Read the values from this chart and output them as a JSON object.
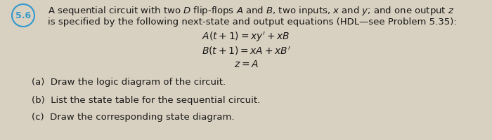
{
  "problem_number": "5.6",
  "circle_color": "#3399cc",
  "background_color": "#d8d0c0",
  "text_color": "#1a1a1a",
  "intro_line1": "A sequential circuit with two $D$ flip-flops $A$ and $B$, two inputs, $x$ and $y$; and one output $z$",
  "intro_line2": "is specified by the following next-state and output equations (HDL—see Problem 5.35):",
  "eq1": "$A(t + 1) = xy' + xB$",
  "eq2": "$B(t + 1) = xA + xB'$",
  "eq3": "$z = A$",
  "part_a": "(a)  Draw the logic diagram of the circuit.",
  "part_b": "(b)  List the state table for the sequential circuit.",
  "part_c": "(c)  Draw the corresponding state diagram.",
  "fontsize_intro": 9.5,
  "fontsize_eq": 10,
  "fontsize_parts": 9.5,
  "fontsize_number": 9
}
